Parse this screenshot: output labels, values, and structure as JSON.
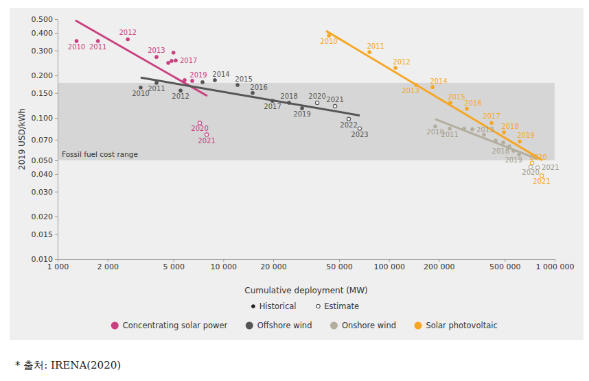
{
  "chart_data": {
    "type": "scatter",
    "log": true,
    "grid": false,
    "legend": "bottom",
    "x_label": "Cumulative deployment (MW)",
    "y_label": "2019 USD/kWh",
    "source": "* 출처: IRENA(2020)",
    "xlim": [
      1000,
      1000000
    ],
    "xticks": [
      {
        "value": 1000,
        "label": "1 000"
      },
      {
        "value": 2000,
        "label": "2 000"
      },
      {
        "value": 5000,
        "label": "5 000"
      },
      {
        "value": 10000,
        "label": "10 000"
      },
      {
        "value": 20000,
        "label": "20 000"
      },
      {
        "value": 50000,
        "label": "50 000"
      },
      {
        "value": 100000,
        "label": "100 000"
      },
      {
        "value": 200000,
        "label": "200 000"
      },
      {
        "value": 500000,
        "label": "500 000"
      },
      {
        "value": 1000000,
        "label": "1 000 000"
      }
    ],
    "ylim": [
      0.01,
      0.5
    ],
    "yticks": [
      {
        "value": 0.01,
        "label": "0.010"
      },
      {
        "value": 0.015,
        "label": "0.015"
      },
      {
        "value": 0.02,
        "label": "0.020"
      },
      {
        "value": 0.03,
        "label": "0.030"
      },
      {
        "value": 0.04,
        "label": "0.040"
      },
      {
        "value": 0.05,
        "label": "0.050"
      },
      {
        "value": 0.07,
        "label": "0.070"
      },
      {
        "value": 0.1,
        "label": "0.100"
      },
      {
        "value": 0.15,
        "label": "0.150"
      },
      {
        "value": 0.2,
        "label": "0.200"
      },
      {
        "value": 0.3,
        "label": "0.300"
      },
      {
        "value": 0.4,
        "label": "0.400"
      },
      {
        "value": 0.5,
        "label": "0.500"
      }
    ],
    "band": {
      "label": "Fossil fuel cost range",
      "values": [
        0.05,
        0.177
      ]
    },
    "marker_legend": [
      {
        "name": "Historical",
        "marker": "filled"
      },
      {
        "name": "Estimate",
        "marker": "open"
      }
    ],
    "series": [
      {
        "name": "Concentrating solar power",
        "color": "#c8407f",
        "x": [
          1300,
          1750,
          2650,
          3950,
          5000,
          4650,
          4870,
          5160,
          5840,
          6490,
          7210,
          7930
        ],
        "values": [
          0.35,
          0.35,
          0.36,
          0.27,
          0.29,
          0.245,
          0.253,
          0.255,
          0.185,
          0.183,
          0.092,
          0.076
        ],
        "labels": [
          "2010",
          "2011",
          "2012",
          "2013",
          null,
          null,
          null,
          "2017",
          null,
          "2019",
          "2020",
          "2021"
        ],
        "markers": [
          "filled",
          "filled",
          "filled",
          "filled",
          "filled",
          "filled",
          "filled",
          "filled",
          "filled",
          "filled",
          "open",
          "open"
        ],
        "trend": {
          "x": [
            1280,
            8000
          ],
          "values": [
            0.49,
            0.143
          ]
        }
      },
      {
        "name": "Offshore wind",
        "color": "#555555",
        "x": [
          3170,
          3950,
          5520,
          7490,
          8890,
          12190,
          15030,
          19820,
          24920,
          29870,
          36870,
          47230,
          57150,
          66560
        ],
        "values": [
          0.164,
          0.177,
          0.156,
          0.179,
          0.185,
          0.171,
          0.15,
          0.132,
          0.128,
          0.117,
          0.128,
          0.121,
          0.098,
          0.084
        ],
        "labels": [
          "2010",
          "2011",
          "2012",
          null,
          "2014",
          "2015",
          "2016",
          "2017",
          "2018",
          "2019",
          "2020",
          "2021",
          "2022",
          "2023"
        ],
        "markers": [
          "filled",
          "filled",
          "filled",
          "filled",
          "filled",
          "filled",
          "filled",
          "filled",
          "filled",
          "filled",
          "open",
          "open",
          "open",
          "open"
        ],
        "trend": {
          "x": [
            3170,
            66560
          ],
          "values": [
            0.193,
            0.104
          ]
        }
      },
      {
        "name": "Onshore wind",
        "color": "#b3ae9e",
        "x": [
          190200,
          232500,
          284000,
          318500,
          374700,
          440500,
          489400,
          533000,
          564500,
          609500,
          716700,
          788500
        ],
        "values": [
          0.087,
          0.084,
          0.084,
          0.083,
          0.076,
          0.069,
          0.067,
          0.063,
          0.0585,
          0.055,
          0.045,
          0.0445
        ],
        "labels": [
          "2010",
          "2011",
          null,
          "2013",
          null,
          null,
          null,
          null,
          "2018",
          "2019",
          "2020",
          "2021"
        ],
        "markers": [
          "filled",
          "filled",
          "filled",
          "filled",
          "filled",
          "filled",
          "filled",
          "filled",
          "filled",
          "filled",
          "open",
          "open"
        ],
        "trend": {
          "x": [
            190000,
            790000
          ],
          "values": [
            0.098,
            0.051
          ]
        }
      },
      {
        "name": "Solar photovoltaic",
        "color": "#f6a623",
        "x": [
          43350,
          76200,
          109400,
          145600,
          183200,
          234600,
          295000,
          415800,
          494000,
          615000,
          730700,
          835000
        ],
        "values": [
          0.382,
          0.292,
          0.226,
          0.171,
          0.165,
          0.128,
          0.116,
          0.092,
          0.079,
          0.068,
          0.048,
          0.039
        ],
        "labels": [
          "2010",
          "2011",
          "2012",
          "2013",
          "2014",
          "2015",
          "2016",
          "2017",
          "2018",
          "2019",
          "2020",
          "2021"
        ],
        "markers": [
          "filled",
          "filled",
          "filled",
          "filled",
          "filled",
          "filled",
          "filled",
          "filled",
          "filled",
          "filled",
          "open",
          "open"
        ],
        "trend": {
          "x": [
            41700,
            845000
          ],
          "values": [
            0.413,
            0.05
          ]
        }
      }
    ]
  }
}
